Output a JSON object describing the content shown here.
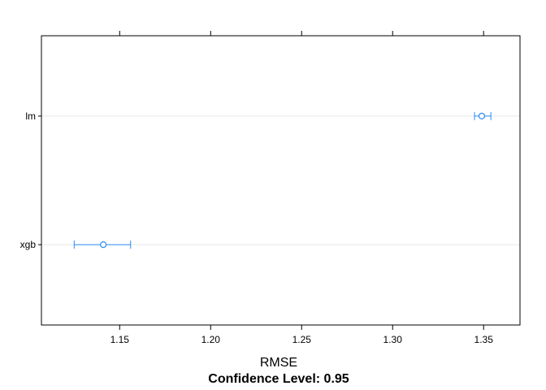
{
  "chart_data": {
    "type": "dotplot-ci",
    "categories": [
      "lm",
      "xgb"
    ],
    "series": [
      {
        "points": [
          {
            "category": "lm",
            "estimate": 1.349,
            "lower": 1.345,
            "upper": 1.354
          },
          {
            "category": "xgb",
            "estimate": 1.141,
            "lower": 1.125,
            "upper": 1.156
          }
        ]
      }
    ],
    "xlabel": "RMSE",
    "subtitle": "Confidence Level: 0.95",
    "x_ticks": [
      "1.15",
      "1.20",
      "1.25",
      "1.30",
      "1.35"
    ],
    "x_tick_values": [
      1.15,
      1.2,
      1.25,
      1.3,
      1.35
    ],
    "xlim": [
      1.107,
      1.37
    ],
    "grid": "horizontal-reference-lines",
    "colors": {
      "point": "#2b8cf4",
      "errorbar": "#2b8cf4",
      "reference_line": "#e6e6e6",
      "axis": "#000000"
    }
  }
}
